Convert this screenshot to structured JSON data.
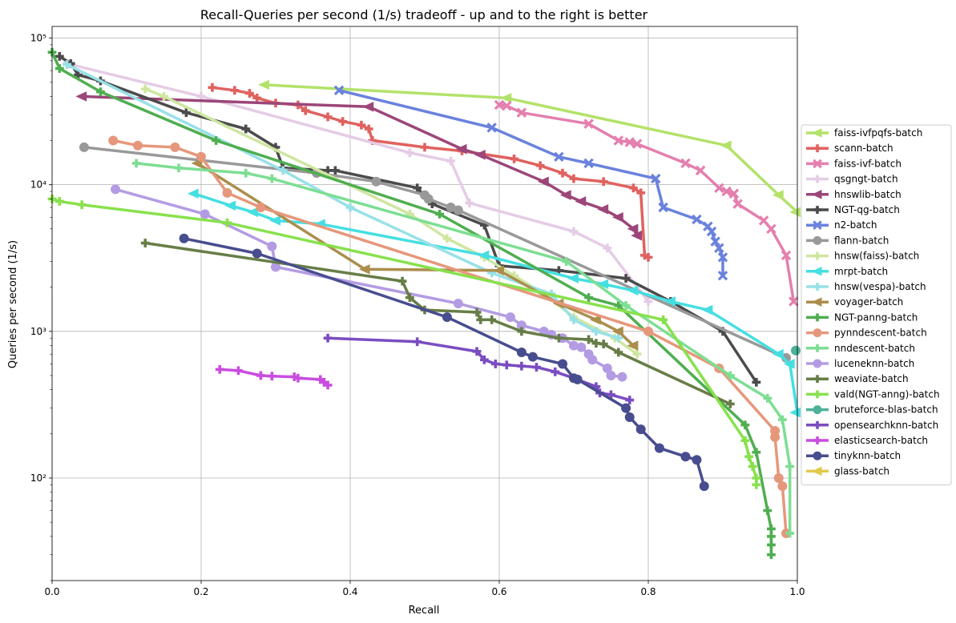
{
  "chart_data": {
    "type": "line",
    "title": "Recall-Queries per second (1/s) tradeoff - up and to the right is better",
    "xlabel": "Recall",
    "ylabel": "Queries per second (1/s)",
    "xlim": [
      0.0,
      1.0
    ],
    "ylim": [
      20,
      120000
    ],
    "yscale": "log",
    "grid": true,
    "legend_position": "right",
    "x_ticks": [
      0.0,
      0.2,
      0.4,
      0.6,
      0.8,
      1.0
    ],
    "x_tick_labels": [
      "0.0",
      "0.2",
      "0.4",
      "0.6",
      "0.8",
      "1.0"
    ],
    "y_ticks": [
      100,
      1000,
      10000,
      100000
    ],
    "y_tick_labels": [
      "10²",
      "10³",
      "10⁴",
      "10⁵"
    ],
    "series": [
      {
        "name": "faiss-ivfpqfs-batch",
        "color": "#b3e26a",
        "marker": "triangle-left",
        "points": [
          [
            0.285,
            48000
          ],
          [
            0.61,
            39000
          ],
          [
            0.905,
            18500
          ],
          [
            0.975,
            8500
          ],
          [
            1.0,
            6500
          ]
        ]
      },
      {
        "name": "scann-batch",
        "color": "#e0625f",
        "marker": "plus",
        "points": [
          [
            0.215,
            46000
          ],
          [
            0.245,
            44000
          ],
          [
            0.265,
            42000
          ],
          [
            0.275,
            39000
          ],
          [
            0.3,
            36000
          ],
          [
            0.33,
            35000
          ],
          [
            0.34,
            32000
          ],
          [
            0.37,
            29000
          ],
          [
            0.39,
            27000
          ],
          [
            0.415,
            25500
          ],
          [
            0.425,
            24000
          ],
          [
            0.43,
            20000
          ],
          [
            0.5,
            18000
          ],
          [
            0.55,
            17000
          ],
          [
            0.62,
            15000
          ],
          [
            0.655,
            13500
          ],
          [
            0.685,
            12000
          ],
          [
            0.7,
            11000
          ],
          [
            0.74,
            10500
          ],
          [
            0.78,
            9500
          ],
          [
            0.79,
            8800
          ],
          [
            0.795,
            3300
          ],
          [
            0.8,
            3200
          ]
        ]
      },
      {
        "name": "faiss-ivf-batch",
        "color": "#e47fae",
        "marker": "x",
        "points": [
          [
            0.6,
            35000
          ],
          [
            0.61,
            34500
          ],
          [
            0.63,
            31000
          ],
          [
            0.72,
            26000
          ],
          [
            0.76,
            20000
          ],
          [
            0.775,
            19500
          ],
          [
            0.785,
            19000
          ],
          [
            0.85,
            14000
          ],
          [
            0.87,
            12500
          ],
          [
            0.895,
            9500
          ],
          [
            0.905,
            9000
          ],
          [
            0.915,
            8700
          ],
          [
            0.92,
            7400
          ],
          [
            0.955,
            5700
          ],
          [
            0.965,
            5000
          ],
          [
            0.985,
            3300
          ],
          [
            0.995,
            1600
          ]
        ]
      },
      {
        "name": "qsgngt-batch",
        "color": "#e5cce6",
        "marker": "plus",
        "points": [
          [
            0.02,
            67000
          ],
          [
            0.2,
            40000
          ],
          [
            0.48,
            16500
          ],
          [
            0.535,
            14500
          ],
          [
            0.56,
            7500
          ],
          [
            0.7,
            4800
          ],
          [
            0.745,
            3700
          ],
          [
            0.8,
            1600
          ]
        ]
      },
      {
        "name": "hnswlib-batch",
        "color": "#9c4679",
        "marker": "triangle-left",
        "points": [
          [
            0.04,
            40000
          ],
          [
            0.425,
            34000
          ],
          [
            0.55,
            17500
          ],
          [
            0.575,
            16000
          ],
          [
            0.66,
            10500
          ],
          [
            0.69,
            8500
          ],
          [
            0.71,
            7700
          ],
          [
            0.74,
            6800
          ],
          [
            0.76,
            6000
          ],
          [
            0.78,
            5000
          ],
          [
            0.785,
            4500
          ]
        ]
      },
      {
        "name": "NGT-qg-batch",
        "color": "#4b4b4b",
        "marker": "plus",
        "points": [
          [
            0.01,
            75000
          ],
          [
            0.025,
            67000
          ],
          [
            0.035,
            56000
          ],
          [
            0.065,
            51000
          ],
          [
            0.18,
            31000
          ],
          [
            0.26,
            24000
          ],
          [
            0.3,
            18000
          ],
          [
            0.31,
            13000
          ],
          [
            0.37,
            12500
          ],
          [
            0.38,
            12500
          ],
          [
            0.49,
            9500
          ],
          [
            0.51,
            7400
          ],
          [
            0.58,
            5300
          ],
          [
            0.6,
            2800
          ],
          [
            0.68,
            2600
          ],
          [
            0.77,
            2300
          ],
          [
            0.83,
            1600
          ],
          [
            0.9,
            1000
          ],
          [
            0.945,
            450
          ]
        ]
      },
      {
        "name": "n2-batch",
        "color": "#6a82dd",
        "marker": "x",
        "points": [
          [
            0.385,
            44000
          ],
          [
            0.59,
            24500
          ],
          [
            0.68,
            15500
          ],
          [
            0.72,
            14000
          ],
          [
            0.81,
            11000
          ],
          [
            0.82,
            7000
          ],
          [
            0.865,
            5800
          ],
          [
            0.88,
            5200
          ],
          [
            0.885,
            4800
          ],
          [
            0.89,
            4100
          ],
          [
            0.895,
            3700
          ],
          [
            0.9,
            3200
          ],
          [
            0.9,
            2400
          ]
        ]
      },
      {
        "name": "flann-batch",
        "color": "#999999",
        "marker": "circle",
        "points": [
          [
            0.043,
            18000
          ],
          [
            0.355,
            12000
          ],
          [
            0.435,
            10500
          ],
          [
            0.5,
            8500
          ],
          [
            0.505,
            8000
          ],
          [
            0.535,
            7000
          ],
          [
            0.545,
            6700
          ],
          [
            0.985,
            660
          ]
        ]
      },
      {
        "name": "hnsw(faiss)-batch",
        "color": "#cfe6a0",
        "marker": "plus",
        "points": [
          [
            0.125,
            45000
          ],
          [
            0.15,
            40000
          ],
          [
            0.48,
            6300
          ],
          [
            0.53,
            4300
          ],
          [
            0.58,
            3200
          ],
          [
            0.62,
            2400
          ],
          [
            0.66,
            1800
          ],
          [
            0.7,
            1250
          ],
          [
            0.755,
            900
          ],
          [
            0.785,
            700
          ]
        ]
      },
      {
        "name": "mrpt-batch",
        "color": "#45dfe2",
        "marker": "triangle-left",
        "points": [
          [
            0.19,
            8700
          ],
          [
            0.24,
            7200
          ],
          [
            0.27,
            6500
          ],
          [
            0.3,
            5700
          ],
          [
            0.36,
            5400
          ],
          [
            0.58,
            3300
          ],
          [
            0.7,
            2300
          ],
          [
            0.74,
            2100
          ],
          [
            0.78,
            1900
          ],
          [
            0.83,
            1600
          ],
          [
            0.88,
            1400
          ],
          [
            0.975,
            700
          ],
          [
            0.99,
            600
          ],
          [
            1.0,
            280
          ]
        ]
      },
      {
        "name": "hnsw(vespa)-batch",
        "color": "#98e1e7",
        "marker": "plus",
        "points": [
          [
            0.02,
            66000
          ],
          [
            0.31,
            12500
          ],
          [
            0.4,
            7000
          ],
          [
            0.59,
            2500
          ],
          [
            0.67,
            1800
          ],
          [
            0.7,
            1200
          ],
          [
            0.73,
            1000
          ],
          [
            0.76,
            900
          ]
        ]
      },
      {
        "name": "voyager-batch",
        "color": "#ab8e4c",
        "marker": "triangle-left",
        "points": [
          [
            0.195,
            14000
          ],
          [
            0.42,
            2650
          ],
          [
            0.6,
            2600
          ],
          [
            0.68,
            1550
          ],
          [
            0.73,
            1200
          ],
          [
            0.76,
            1000
          ],
          [
            0.78,
            800
          ]
        ]
      },
      {
        "name": "NGT-panng-batch",
        "color": "#4fae50",
        "marker": "plus",
        "points": [
          [
            0.0,
            80000
          ],
          [
            0.01,
            62000
          ],
          [
            0.065,
            43000
          ],
          [
            0.22,
            20000
          ],
          [
            0.52,
            6300
          ],
          [
            0.72,
            1700
          ],
          [
            0.76,
            1500
          ],
          [
            0.93,
            230
          ],
          [
            0.945,
            150
          ],
          [
            0.96,
            60
          ],
          [
            0.965,
            45
          ],
          [
            0.965,
            40
          ],
          [
            0.965,
            35
          ],
          [
            0.965,
            30
          ]
        ]
      },
      {
        "name": "pynndescent-batch",
        "color": "#e6977b",
        "marker": "circle",
        "points": [
          [
            0.082,
            20000
          ],
          [
            0.115,
            18500
          ],
          [
            0.165,
            18000
          ],
          [
            0.2,
            15500
          ],
          [
            0.235,
            8800
          ],
          [
            0.28,
            7000
          ],
          [
            0.8,
            1000
          ],
          [
            0.895,
            560
          ],
          [
            0.97,
            210
          ],
          [
            0.97,
            190
          ],
          [
            0.975,
            100
          ],
          [
            0.98,
            88
          ],
          [
            0.985,
            42
          ]
        ]
      },
      {
        "name": "nndescent-batch",
        "color": "#7dde93",
        "marker": "plus",
        "points": [
          [
            0.113,
            14000
          ],
          [
            0.17,
            13000
          ],
          [
            0.26,
            12000
          ],
          [
            0.295,
            11000
          ],
          [
            0.69,
            3000
          ],
          [
            0.77,
            1500
          ],
          [
            0.91,
            500
          ],
          [
            0.96,
            350
          ],
          [
            0.98,
            250
          ],
          [
            0.99,
            120
          ],
          [
            0.99,
            42
          ]
        ]
      },
      {
        "name": "luceneknn-batch",
        "color": "#b39ce3",
        "marker": "circle",
        "points": [
          [
            0.085,
            9300
          ],
          [
            0.205,
            6300
          ],
          [
            0.295,
            3800
          ],
          [
            0.3,
            2750
          ],
          [
            0.545,
            1550
          ],
          [
            0.615,
            1250
          ],
          [
            0.63,
            1100
          ],
          [
            0.66,
            1000
          ],
          [
            0.67,
            950
          ],
          [
            0.685,
            900
          ],
          [
            0.7,
            800
          ],
          [
            0.71,
            780
          ],
          [
            0.72,
            700
          ],
          [
            0.725,
            640
          ],
          [
            0.745,
            560
          ],
          [
            0.75,
            500
          ],
          [
            0.765,
            490
          ]
        ]
      },
      {
        "name": "weaviate-batch",
        "color": "#677d47",
        "marker": "plus",
        "points": [
          [
            0.125,
            4000
          ],
          [
            0.47,
            2200
          ],
          [
            0.48,
            1700
          ],
          [
            0.5,
            1400
          ],
          [
            0.57,
            1350
          ],
          [
            0.575,
            1200
          ],
          [
            0.59,
            1200
          ],
          [
            0.63,
            1000
          ],
          [
            0.68,
            900
          ],
          [
            0.72,
            880
          ],
          [
            0.73,
            830
          ],
          [
            0.74,
            820
          ],
          [
            0.76,
            720
          ],
          [
            0.91,
            320
          ]
        ]
      },
      {
        "name": "vald(NGT-anng)-batch",
        "color": "#88e14d",
        "marker": "plus",
        "points": [
          [
            0.0,
            8000
          ],
          [
            0.01,
            7700
          ],
          [
            0.04,
            7300
          ],
          [
            0.235,
            5500
          ],
          [
            0.82,
            1200
          ],
          [
            0.93,
            180
          ],
          [
            0.935,
            140
          ],
          [
            0.94,
            120
          ],
          [
            0.945,
            100
          ],
          [
            0.945,
            90
          ]
        ]
      },
      {
        "name": "bruteforce-blas-batch",
        "color": "#4db299",
        "marker": "circle",
        "points": [
          [
            1.0,
            740
          ]
        ]
      },
      {
        "name": "opensearchknn-batch",
        "color": "#7a4dc1",
        "marker": "plus",
        "points": [
          [
            0.37,
            900
          ],
          [
            0.49,
            850
          ],
          [
            0.57,
            730
          ],
          [
            0.58,
            640
          ],
          [
            0.595,
            600
          ],
          [
            0.61,
            590
          ],
          [
            0.63,
            580
          ],
          [
            0.65,
            570
          ],
          [
            0.675,
            530
          ],
          [
            0.7,
            480
          ],
          [
            0.73,
            420
          ],
          [
            0.735,
            380
          ],
          [
            0.75,
            370
          ],
          [
            0.775,
            340
          ]
        ]
      },
      {
        "name": "elasticsearch-batch",
        "color": "#c94ddf",
        "marker": "plus",
        "points": [
          [
            0.225,
            550
          ],
          [
            0.25,
            540
          ],
          [
            0.28,
            500
          ],
          [
            0.295,
            495
          ],
          [
            0.325,
            490
          ],
          [
            0.33,
            480
          ],
          [
            0.36,
            470
          ],
          [
            0.365,
            450
          ],
          [
            0.37,
            430
          ]
        ]
      },
      {
        "name": "tinyknn-batch",
        "color": "#474d8e",
        "marker": "circle",
        "points": [
          [
            0.177,
            4300
          ],
          [
            0.275,
            3400
          ],
          [
            0.53,
            1250
          ],
          [
            0.63,
            720
          ],
          [
            0.645,
            670
          ],
          [
            0.685,
            600
          ],
          [
            0.7,
            480
          ],
          [
            0.705,
            470
          ],
          [
            0.77,
            300
          ],
          [
            0.775,
            260
          ],
          [
            0.79,
            215
          ],
          [
            0.815,
            160
          ],
          [
            0.85,
            140
          ],
          [
            0.865,
            133
          ],
          [
            0.875,
            88
          ]
        ]
      },
      {
        "name": "glass-batch",
        "color": "#e2c84c",
        "marker": "triangle-left",
        "points": []
      }
    ]
  }
}
